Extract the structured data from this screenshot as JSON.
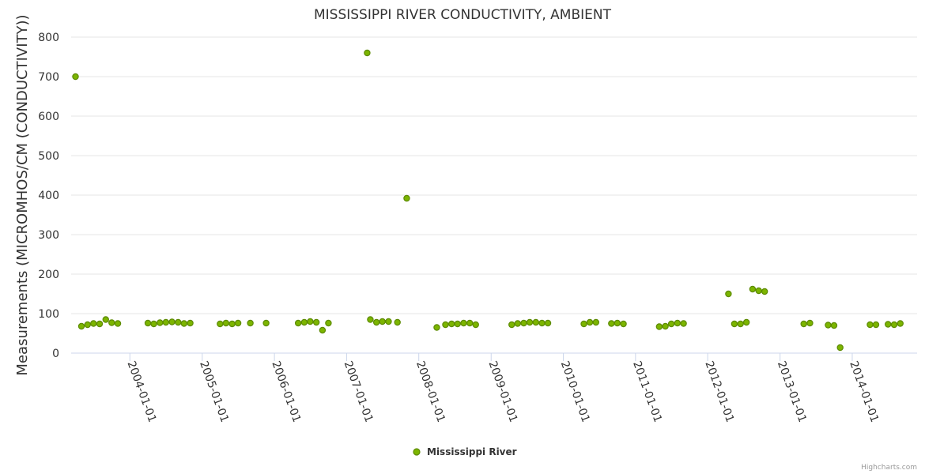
{
  "chart_data": {
    "type": "scatter",
    "title": "MISSISSIPPI RIVER CONDUCTIVITY, AMBIENT",
    "ylabel": "Measurements (MICROMHOS/CM (CONDUCTIVITY))",
    "xlabel": "",
    "ylim": [
      0,
      800
    ],
    "yticks": [
      0,
      100,
      200,
      300,
      400,
      500,
      600,
      700,
      800
    ],
    "xlim": [
      "2003-03-10",
      "2014-11-25"
    ],
    "xticks": [
      "2004-01-01",
      "2005-01-01",
      "2006-01-01",
      "2007-01-01",
      "2008-01-01",
      "2009-01-01",
      "2010-01-01",
      "2011-01-01",
      "2012-01-01",
      "2013-01-01",
      "2014-01-01"
    ],
    "grid": true,
    "legend_position": "bottom",
    "color": "#7cb500",
    "credits": "Highcharts.com",
    "series": [
      {
        "name": "Mississippi River",
        "points": [
          [
            "2003-04-01",
            700
          ],
          [
            "2003-05-01",
            68
          ],
          [
            "2003-06-01",
            72
          ],
          [
            "2003-07-01",
            75
          ],
          [
            "2003-08-01",
            74
          ],
          [
            "2003-09-01",
            85
          ],
          [
            "2003-10-01",
            77
          ],
          [
            "2003-11-01",
            75
          ],
          [
            "2004-04-01",
            76
          ],
          [
            "2004-05-01",
            74
          ],
          [
            "2004-06-01",
            77
          ],
          [
            "2004-07-01",
            78
          ],
          [
            "2004-08-01",
            79
          ],
          [
            "2004-09-01",
            78
          ],
          [
            "2004-10-01",
            75
          ],
          [
            "2004-11-01",
            76
          ],
          [
            "2005-04-01",
            74
          ],
          [
            "2005-05-01",
            76
          ],
          [
            "2005-06-01",
            74
          ],
          [
            "2005-07-01",
            76
          ],
          [
            "2005-09-01",
            76
          ],
          [
            "2005-11-20",
            76
          ],
          [
            "2006-05-01",
            76
          ],
          [
            "2006-06-01",
            78
          ],
          [
            "2006-07-01",
            80
          ],
          [
            "2006-08-01",
            78
          ],
          [
            "2006-09-01",
            58
          ],
          [
            "2006-10-01",
            76
          ],
          [
            "2007-04-15",
            760
          ],
          [
            "2007-05-01",
            85
          ],
          [
            "2007-06-01",
            78
          ],
          [
            "2007-07-01",
            80
          ],
          [
            "2007-08-01",
            80
          ],
          [
            "2007-09-15",
            78
          ],
          [
            "2007-11-01",
            392
          ],
          [
            "2008-04-01",
            65
          ],
          [
            "2008-05-15",
            72
          ],
          [
            "2008-06-15",
            74
          ],
          [
            "2008-07-15",
            74
          ],
          [
            "2008-08-15",
            76
          ],
          [
            "2008-09-15",
            76
          ],
          [
            "2008-10-15",
            72
          ],
          [
            "2009-04-15",
            72
          ],
          [
            "2009-05-15",
            75
          ],
          [
            "2009-06-15",
            76
          ],
          [
            "2009-07-15",
            78
          ],
          [
            "2009-08-15",
            78
          ],
          [
            "2009-09-15",
            76
          ],
          [
            "2009-10-15",
            76
          ],
          [
            "2010-04-15",
            74
          ],
          [
            "2010-05-15",
            78
          ],
          [
            "2010-06-15",
            78
          ],
          [
            "2010-09-01",
            75
          ],
          [
            "2010-10-01",
            76
          ],
          [
            "2010-11-01",
            74
          ],
          [
            "2011-05-01",
            67
          ],
          [
            "2011-06-01",
            68
          ],
          [
            "2011-07-01",
            74
          ],
          [
            "2011-08-01",
            76
          ],
          [
            "2011-09-01",
            75
          ],
          [
            "2012-04-15",
            150
          ],
          [
            "2012-05-15",
            74
          ],
          [
            "2012-06-15",
            74
          ],
          [
            "2012-07-15",
            78
          ],
          [
            "2012-08-15",
            162
          ],
          [
            "2012-09-15",
            158
          ],
          [
            "2012-10-15",
            156
          ],
          [
            "2013-05-01",
            74
          ],
          [
            "2013-06-01",
            76
          ],
          [
            "2013-09-01",
            71
          ],
          [
            "2013-10-01",
            70
          ],
          [
            "2013-11-01",
            14
          ],
          [
            "2014-04-01",
            72
          ],
          [
            "2014-05-01",
            72
          ],
          [
            "2014-07-01",
            73
          ],
          [
            "2014-08-01",
            72
          ],
          [
            "2014-09-01",
            75
          ]
        ]
      }
    ]
  }
}
